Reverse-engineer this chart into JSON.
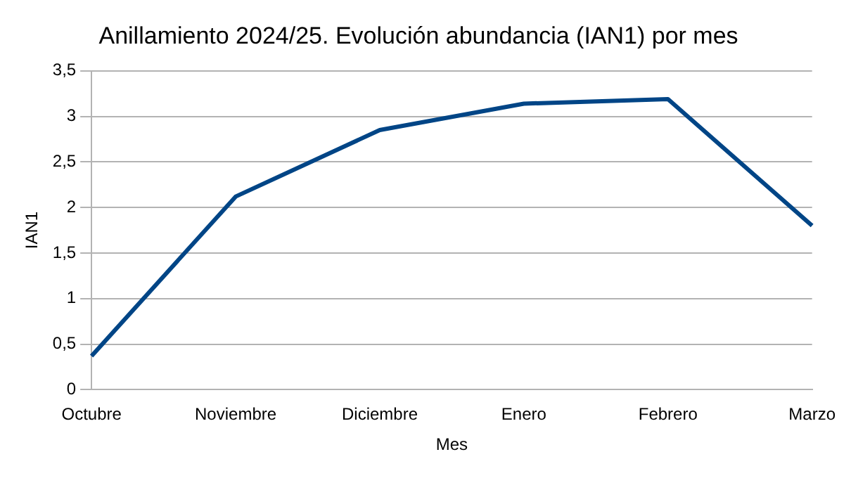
{
  "chart_data": {
    "type": "line",
    "title": "Anillamiento 2024/25. Evolución abundancia (IAN1) por mes",
    "xlabel": "Mes",
    "ylabel": "IAN1",
    "categories": [
      "Octubre",
      "Noviembre",
      "Diciembre",
      "Enero",
      "Febrero",
      "Marzo"
    ],
    "series": [
      {
        "color": "#004586",
        "values": [
          0.37,
          2.12,
          2.85,
          3.14,
          3.19,
          1.8
        ]
      }
    ],
    "ylim": [
      0,
      3.5
    ],
    "yticks": [
      0,
      {
        "value": 0.5,
        "label": "0,5"
      },
      1,
      {
        "value": 1.5,
        "label": "1,5"
      },
      2,
      {
        "value": 2.5,
        "label": "2,5"
      },
      3,
      {
        "value": 3.5,
        "label": "3,5"
      }
    ],
    "grid": "y",
    "legend": false,
    "marker": "none",
    "line_style": "solid"
  }
}
